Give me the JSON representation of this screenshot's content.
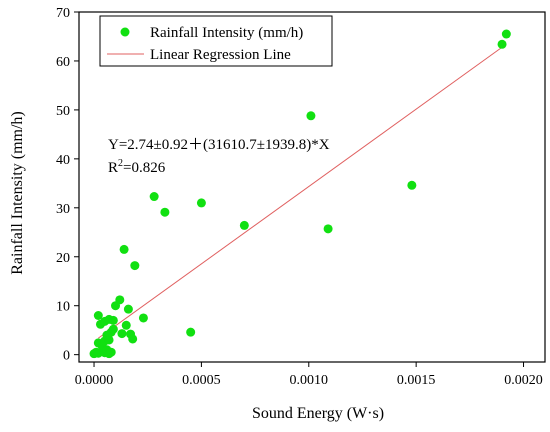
{
  "chart_data": {
    "type": "scatter",
    "xlabel": "Sound Energy (W·s)",
    "ylabel": "Rainfall Intensity (mm/h)",
    "xlim": [
      -7e-05,
      0.0021
    ],
    "ylim": [
      -1.5,
      70
    ],
    "xticks": [
      0.0,
      0.0005,
      0.001,
      0.0015,
      0.002
    ],
    "xtick_labels": [
      "0.0000",
      "0.0005",
      "0.0010",
      "0.0015",
      "0.0020"
    ],
    "yticks": [
      0,
      10,
      20,
      30,
      40,
      50,
      60,
      70
    ],
    "ytick_labels": [
      "0",
      "10",
      "20",
      "30",
      "40",
      "50",
      "60",
      "70"
    ],
    "grid": false,
    "legend_position": "top-left",
    "legend": [
      {
        "label": "Rainfall Intensity (mm/h)",
        "kind": "marker"
      },
      {
        "label": "Linear Regression Line",
        "kind": "line"
      }
    ],
    "colors": {
      "points": "#11e011",
      "regression": "#e06060"
    },
    "regression": {
      "intercept": 2.74,
      "slope": 31610.7,
      "x_range": [
        2e-05,
        0.0019
      ],
      "equation_text": "Y=2.74±0.92＋(31610.7±1939.8)*X",
      "r2_prefix": "R",
      "r2_sup": "2",
      "r2_value": "=0.826"
    },
    "series": [
      {
        "name": "Rainfall Intensity (mm/h)",
        "points": [
          [
            0.0,
            0.2
          ],
          [
            1e-05,
            0.5
          ],
          [
            2e-05,
            0.3
          ],
          [
            3e-05,
            2.2
          ],
          [
            2e-05,
            2.4
          ],
          [
            4e-05,
            1.5
          ],
          [
            5e-05,
            0.4
          ],
          [
            6e-05,
            1.0
          ],
          [
            7e-05,
            0.2
          ],
          [
            8e-05,
            0.5
          ],
          [
            5e-05,
            2.8
          ],
          [
            7e-05,
            3.0
          ],
          [
            6e-05,
            4.0
          ],
          [
            8e-05,
            4.6
          ],
          [
            9e-05,
            5.2
          ],
          [
            3e-05,
            6.2
          ],
          [
            5e-05,
            6.8
          ],
          [
            7e-05,
            7.2
          ],
          [
            9e-05,
            7.0
          ],
          [
            2e-05,
            8.0
          ],
          [
            0.0001,
            10.0
          ],
          [
            0.00012,
            11.2
          ],
          [
            0.00013,
            4.3
          ],
          [
            0.00015,
            6.0
          ],
          [
            0.00016,
            9.3
          ],
          [
            0.00017,
            4.2
          ],
          [
            0.00018,
            3.2
          ],
          [
            0.00014,
            21.5
          ],
          [
            0.00019,
            18.2
          ],
          [
            0.00023,
            7.5
          ],
          [
            0.00028,
            32.3
          ],
          [
            0.00033,
            29.1
          ],
          [
            0.00045,
            4.6
          ],
          [
            0.0005,
            31.0
          ],
          [
            0.0007,
            26.4
          ],
          [
            0.00101,
            48.8
          ],
          [
            0.00109,
            25.7
          ],
          [
            0.00148,
            34.6
          ],
          [
            0.0019,
            63.4
          ],
          [
            0.00192,
            65.5
          ]
        ]
      }
    ]
  }
}
